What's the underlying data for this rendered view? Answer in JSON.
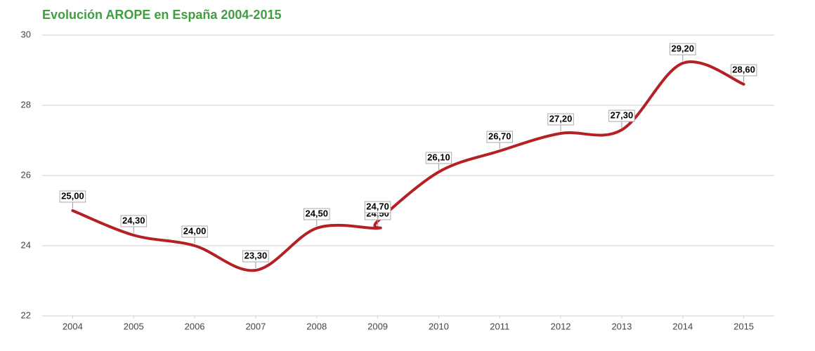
{
  "chart_data": {
    "type": "line",
    "title": "Evolución AROPE en España 2004-2015",
    "x": [
      2004,
      2005,
      2006,
      2007,
      2008,
      2009,
      2009,
      2010,
      2011,
      2012,
      2013,
      2014,
      2015
    ],
    "values": [
      25.0,
      24.3,
      24.0,
      23.3,
      24.5,
      24.5,
      24.7,
      26.1,
      26.7,
      27.2,
      27.3,
      29.2,
      28.6
    ],
    "value_labels": [
      "25,00",
      "24,30",
      "24,00",
      "23,30",
      "24,50",
      "24,50",
      "24,70",
      "26,10",
      "26,70",
      "27,20",
      "27,30",
      "29,20",
      "28,60"
    ],
    "color": "#b52025",
    "xlim": [
      2003.5,
      2015.5
    ],
    "xticks": [
      2004,
      2005,
      2006,
      2007,
      2008,
      2009,
      2010,
      2011,
      2012,
      2013,
      2014,
      2015
    ],
    "ylim": [
      22,
      30
    ],
    "yticks": [
      22,
      24,
      26,
      28,
      30
    ],
    "grid": true
  }
}
